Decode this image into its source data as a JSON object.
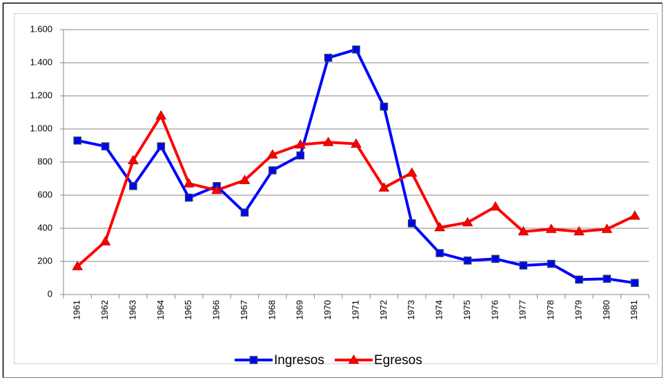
{
  "chart_data": {
    "type": "line",
    "categories": [
      "1961",
      "1962",
      "1963",
      "1964",
      "1965",
      "1966",
      "1967",
      "1968",
      "1969",
      "1970",
      "1971",
      "1972",
      "1973",
      "1974",
      "1975",
      "1976",
      "1977",
      "1978",
      "1979",
      "1980",
      "1981"
    ],
    "series": [
      {
        "name": "Ingresos",
        "color": "#0000ff",
        "marker": "square",
        "values": [
          930,
          895,
          655,
          895,
          585,
          655,
          495,
          750,
          840,
          1430,
          1480,
          1135,
          430,
          250,
          205,
          215,
          175,
          185,
          90,
          95,
          70
        ]
      },
      {
        "name": "Egresos",
        "color": "#ff0000",
        "marker": "triangle",
        "values": [
          170,
          320,
          810,
          1080,
          670,
          630,
          690,
          845,
          905,
          920,
          910,
          645,
          735,
          405,
          435,
          530,
          380,
          395,
          380,
          395,
          475
        ]
      }
    ],
    "ylim": [
      0,
      1600
    ],
    "yticks": [
      0,
      200,
      400,
      600,
      800,
      {
        "value": 1000,
        "label": "1.000"
      },
      {
        "value": 1200,
        "label": "1.200"
      },
      {
        "value": 1400,
        "label": "1.400"
      },
      {
        "value": 1600,
        "label": "1.600"
      }
    ],
    "grid": true,
    "legend": "bottom"
  }
}
